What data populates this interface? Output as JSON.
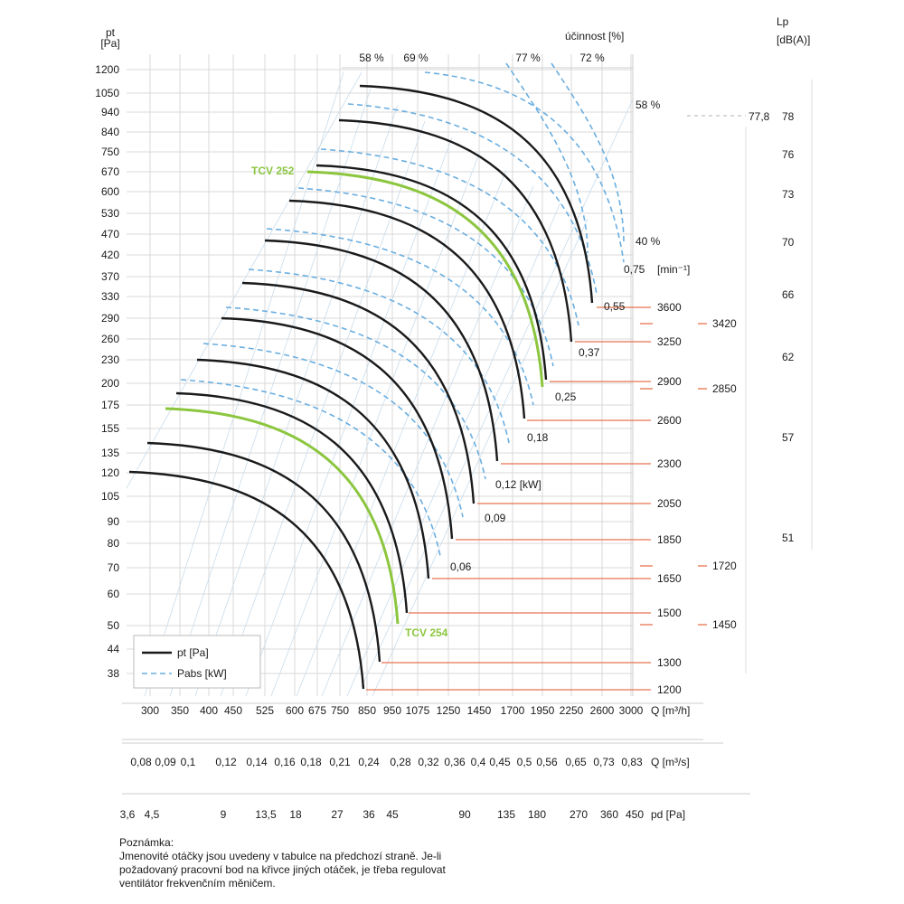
{
  "chart_data": {
    "type": "line",
    "y_axis": {
      "label": "pt",
      "unit": "[Pa]",
      "ticks": [
        "1200",
        "1050",
        "940",
        "840",
        "750",
        "670",
        "600",
        "530",
        "470",
        "420",
        "370",
        "330",
        "290",
        "260",
        "230",
        "200",
        "175",
        "155",
        "135",
        "120",
        "105",
        "90",
        "80",
        "70",
        "60",
        "50",
        "44",
        "38"
      ]
    },
    "x_axis_flow_m3h": {
      "label": "Q [m³/h]",
      "ticks": [
        "300",
        "350",
        "400",
        "450",
        "525",
        "600",
        "675",
        "750",
        "850",
        "950",
        "1075",
        "1250",
        "1450",
        "1700",
        "1950",
        "2250",
        "2600",
        "3000"
      ]
    },
    "x_axis_flow_m3s": {
      "label": "Q [m³/s]",
      "ticks": [
        "0,08",
        "0,09",
        "0,1",
        "0,12",
        "0,14",
        "0,16",
        "0,18",
        "0,21",
        "0,24",
        "0,28",
        "0,32",
        "0,36",
        "0,4",
        "0,45",
        "0,5",
        "0,56",
        "0,65",
        "0,73",
        "0,83"
      ]
    },
    "x_axis_dynamic_pressure": {
      "label": "pd [Pa]",
      "ticks": [
        "3,6",
        "4,5",
        "9",
        "13,5",
        "18",
        "27",
        "36",
        "45",
        "90",
        "135",
        "180",
        "270",
        "360",
        "450"
      ]
    },
    "efficiency": {
      "title": "účinnost [%]",
      "top_labels": [
        "58 %",
        "69 %",
        "77 %",
        "72 %"
      ],
      "side_labels": [
        "58 %",
        "40 %"
      ]
    },
    "speed_unit": "[min⁻¹]",
    "speeds_rpm": [
      "3600",
      "3250",
      "2900",
      "2600",
      "2300",
      "2050",
      "1850",
      "1650",
      "1500",
      "1300",
      "1200"
    ],
    "speeds_right": [
      "3420",
      "2850",
      "1720",
      "1450"
    ],
    "power_labels_kw": [
      "0,75",
      "0,55",
      "0,37",
      "0,25",
      "0,18",
      "0,12 [kW]",
      "0,09",
      "0,06"
    ],
    "sound_axis": {
      "label": "Lp",
      "unit": "[dB(A)]",
      "ticks": [
        "78",
        "76",
        "73",
        "70",
        "66",
        "62",
        "57",
        "51"
      ],
      "marker": "77,8"
    },
    "highlighted_curves": [
      "TCV 252",
      "TCV 254"
    ],
    "legend": {
      "pt": "pt [Pa]",
      "pabs": "Pabs [kW]"
    },
    "colors": {
      "curve": "#1a1a1a",
      "highlight": "#8cc63f",
      "power": "#6aaee0",
      "speed_line": "#e8744f",
      "grid": "#d8d8d8"
    }
  },
  "note": {
    "heading": "Poznámka:",
    "lines": [
      "Jmenovité otáčky jsou uvedeny v tabulce na předchozí straně. Je-li",
      "požadovaný pracovní bod na křivce jiných otáček, je třeba regulovat",
      "ventilátor frekvenčním měničem."
    ]
  }
}
